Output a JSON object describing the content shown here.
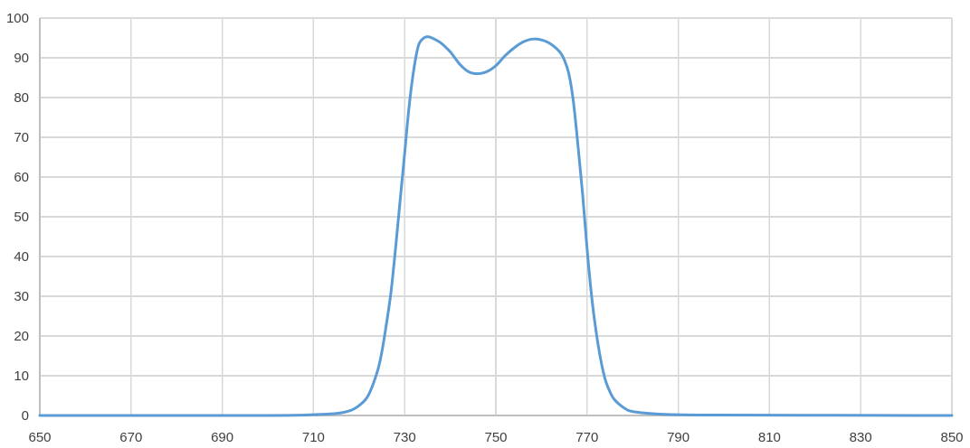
{
  "chart_data": {
    "type": "line",
    "title": "",
    "xlabel": "",
    "ylabel": "",
    "xlim": [
      650,
      850
    ],
    "ylim": [
      0,
      100
    ],
    "x_ticks": [
      "650",
      "670",
      "690",
      "710",
      "730",
      "750",
      "770",
      "790",
      "810",
      "830",
      "850"
    ],
    "y_ticks": [
      "0",
      "10",
      "20",
      "30",
      "40",
      "50",
      "60",
      "70",
      "80",
      "90",
      "100"
    ],
    "grid": true,
    "legend": "none",
    "series": [
      {
        "color": "#5b9bd5",
        "x": [
          650,
          700,
          710,
          715,
          718,
          720,
          722,
          724,
          725,
          726,
          727,
          728,
          729,
          730,
          731,
          732,
          733,
          734,
          735,
          736,
          737,
          738,
          740,
          742,
          744,
          746,
          748,
          750,
          752,
          754,
          756,
          758,
          760,
          762,
          764,
          765,
          766,
          767,
          768,
          769,
          770,
          771,
          772,
          773,
          774,
          775,
          776,
          778,
          780,
          785,
          790,
          800,
          850
        ],
        "y": [
          0,
          0,
          0.2,
          0.5,
          1.2,
          2.5,
          5,
          11,
          16,
          23,
          31,
          42,
          54,
          66,
          78,
          87,
          93,
          94.8,
          95.3,
          95,
          94.4,
          93.7,
          91.5,
          88.5,
          86.5,
          86,
          86.5,
          88,
          90.5,
          92.5,
          94,
          94.7,
          94.5,
          93.5,
          91.5,
          89.5,
          86,
          79,
          68,
          56,
          42,
          30,
          21,
          14,
          9,
          6,
          4,
          2,
          1,
          0.4,
          0.2,
          0.1,
          0
        ]
      }
    ]
  }
}
